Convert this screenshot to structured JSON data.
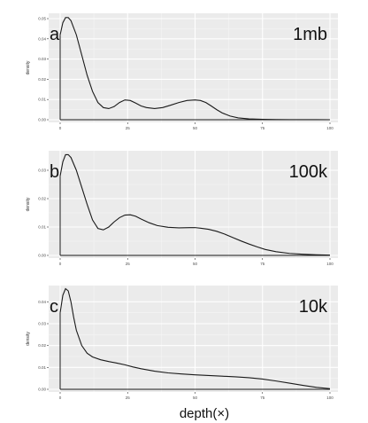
{
  "xlabel": "depth(×)",
  "chart_data": [
    {
      "type": "line",
      "letter": "a",
      "title": "1mb",
      "ylabel": "density",
      "xlim": [
        0,
        100
      ],
      "ylim": [
        0,
        0.05
      ],
      "x_ticks": [
        0,
        25,
        50,
        75,
        100
      ],
      "y_ticks": [
        0.0,
        0.01,
        0.02,
        0.03,
        0.04,
        0.05
      ],
      "y_tick_labels": [
        "0.00",
        "0.01",
        "0.02",
        "0.03",
        "0.04",
        "0.05"
      ],
      "series": [
        {
          "x": [
            0,
            1,
            2,
            3,
            4,
            6,
            8,
            10,
            12,
            14,
            16,
            18,
            20,
            22,
            24,
            26,
            28,
            30,
            32,
            35,
            38,
            41,
            44,
            47,
            50,
            52,
            54,
            56,
            58,
            60,
            63,
            66,
            70,
            75,
            80,
            85,
            90,
            95,
            100
          ],
          "y": [
            0.042,
            0.048,
            0.0505,
            0.0505,
            0.049,
            0.042,
            0.032,
            0.022,
            0.014,
            0.0085,
            0.006,
            0.0055,
            0.0065,
            0.0085,
            0.0098,
            0.0095,
            0.0082,
            0.0068,
            0.006,
            0.0055,
            0.006,
            0.0072,
            0.0085,
            0.0095,
            0.0098,
            0.0095,
            0.0085,
            0.0068,
            0.005,
            0.0034,
            0.0018,
            0.0009,
            0.0004,
            0.0002,
            0.0001,
            5e-05,
            2e-05,
            1e-05,
            0
          ]
        }
      ]
    },
    {
      "type": "line",
      "letter": "b",
      "title": "100k",
      "ylabel": "density",
      "xlim": [
        0,
        100
      ],
      "ylim": [
        0,
        0.035
      ],
      "x_ticks": [
        0,
        25,
        50,
        75,
        100
      ],
      "y_ticks": [
        0.0,
        0.01,
        0.02,
        0.03
      ],
      "y_tick_labels": [
        "0.00",
        "0.01",
        "0.02",
        "0.03"
      ],
      "series": [
        {
          "x": [
            0,
            1,
            2,
            3,
            4,
            6,
            8,
            10,
            12,
            14,
            16,
            18,
            20,
            22,
            24,
            26,
            28,
            30,
            33,
            36,
            40,
            44,
            48,
            50,
            52,
            55,
            58,
            61,
            64,
            67,
            70,
            73,
            76,
            80,
            85,
            90,
            95,
            100
          ],
          "y": [
            0.028,
            0.033,
            0.0355,
            0.0355,
            0.0345,
            0.03,
            0.024,
            0.018,
            0.0125,
            0.0095,
            0.009,
            0.01,
            0.0118,
            0.0133,
            0.0142,
            0.0143,
            0.0138,
            0.0128,
            0.0115,
            0.0105,
            0.0099,
            0.0097,
            0.0098,
            0.0098,
            0.0096,
            0.0092,
            0.0085,
            0.0075,
            0.0063,
            0.0051,
            0.004,
            0.003,
            0.0021,
            0.0013,
            0.0007,
            0.0004,
            0.0002,
            0.0001
          ]
        }
      ]
    },
    {
      "type": "line",
      "letter": "c",
      "title": "10k",
      "ylabel": "density",
      "xlim": [
        0,
        100
      ],
      "ylim": [
        0,
        0.045
      ],
      "x_ticks": [
        0,
        25,
        50,
        75,
        100
      ],
      "y_ticks": [
        0.0,
        0.01,
        0.02,
        0.03,
        0.04
      ],
      "y_tick_labels": [
        "0.00",
        "0.01",
        "0.02",
        "0.03",
        "0.04"
      ],
      "series": [
        {
          "x": [
            0,
            1,
            2,
            3,
            4,
            5,
            6,
            8,
            10,
            12,
            15,
            18,
            21,
            24,
            27,
            30,
            35,
            40,
            45,
            50,
            55,
            60,
            65,
            70,
            75,
            80,
            85,
            90,
            95,
            100
          ],
          "y": [
            0.035,
            0.043,
            0.046,
            0.045,
            0.04,
            0.033,
            0.027,
            0.02,
            0.0165,
            0.0148,
            0.0135,
            0.0127,
            0.012,
            0.0112,
            0.0102,
            0.0094,
            0.0083,
            0.0075,
            0.007,
            0.0066,
            0.0063,
            0.006,
            0.0057,
            0.0053,
            0.0047,
            0.0038,
            0.0028,
            0.0018,
            0.0009,
            0.0003
          ]
        }
      ]
    }
  ]
}
